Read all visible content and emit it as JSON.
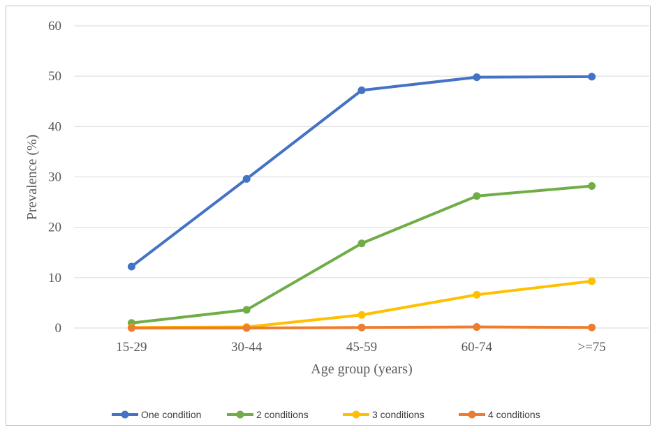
{
  "chart_data": {
    "type": "line",
    "title": "",
    "xlabel": "Age group (years)",
    "ylabel": "Prevalence (%)",
    "categories": [
      "15-29",
      "30-44",
      "45-59",
      "60-74",
      ">=75"
    ],
    "ylim": [
      0,
      60
    ],
    "yticks": [
      0,
      10,
      20,
      30,
      40,
      50,
      60
    ],
    "grid": true,
    "legend_position": "bottom",
    "series": [
      {
        "name": "One condition",
        "color": "#4472c4",
        "values": [
          12.2,
          29.6,
          47.2,
          49.8,
          49.9
        ]
      },
      {
        "name": "2 conditions",
        "color": "#70ad47",
        "values": [
          1.0,
          3.6,
          16.8,
          26.2,
          28.2
        ]
      },
      {
        "name": "3 conditions",
        "color": "#ffc000",
        "values": [
          0.1,
          0.2,
          2.6,
          6.6,
          9.3
        ]
      },
      {
        "name": "4 conditions",
        "color": "#ed7d31",
        "values": [
          0.0,
          0.0,
          0.1,
          0.2,
          0.1
        ]
      }
    ]
  }
}
